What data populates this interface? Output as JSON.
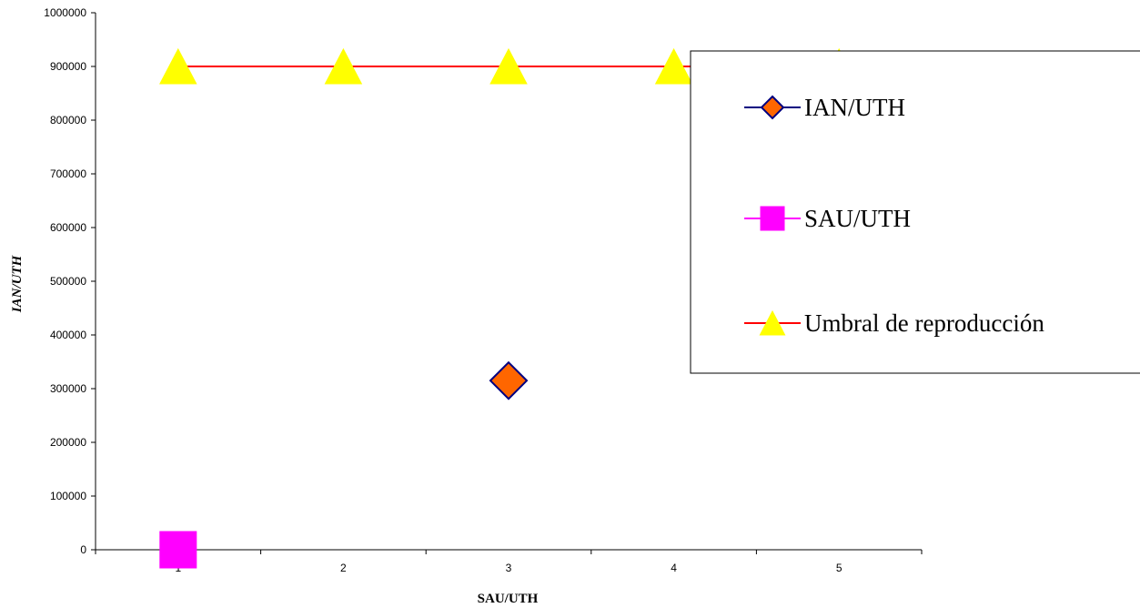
{
  "chart_data": {
    "type": "line",
    "title": "",
    "xlabel": "SAU/UTH",
    "ylabel": "IAN/UTH",
    "categories": [
      "1",
      "2",
      "3",
      "4",
      "5"
    ],
    "ylim": [
      0,
      1000000
    ],
    "yticks": [
      0,
      100000,
      200000,
      300000,
      400000,
      500000,
      600000,
      700000,
      800000,
      900000,
      1000000
    ],
    "ytick_labels": [
      "0",
      "100000",
      "200000",
      "300000",
      "400000",
      "500000",
      "600000",
      "700000",
      "800000",
      "900000",
      "1000000"
    ],
    "grid": false,
    "legend_position": "right",
    "series": [
      {
        "name": "IAN/UTH",
        "marker": "diamond",
        "line_color": "#000080",
        "marker_fill": "#FF6600",
        "marker_edge": "#000080",
        "points": [
          {
            "x": 3,
            "y": 315000
          }
        ]
      },
      {
        "name": "SAU/UTH",
        "marker": "square",
        "line_color": "#FF00FF",
        "marker_fill": "#FF00FF",
        "marker_edge": "#FF00FF",
        "points": [
          {
            "x": 1,
            "y": 0
          }
        ]
      },
      {
        "name": "Umbral de reproducción",
        "marker": "triangle",
        "line_color": "#FF0000",
        "marker_fill": "#FFFF00",
        "marker_edge": "#FFFF00",
        "points": [
          {
            "x": 1,
            "y": 900000
          },
          {
            "x": 2,
            "y": 900000
          },
          {
            "x": 3,
            "y": 900000
          },
          {
            "x": 4,
            "y": 900000
          },
          {
            "x": 5,
            "y": 900000
          }
        ]
      }
    ]
  }
}
